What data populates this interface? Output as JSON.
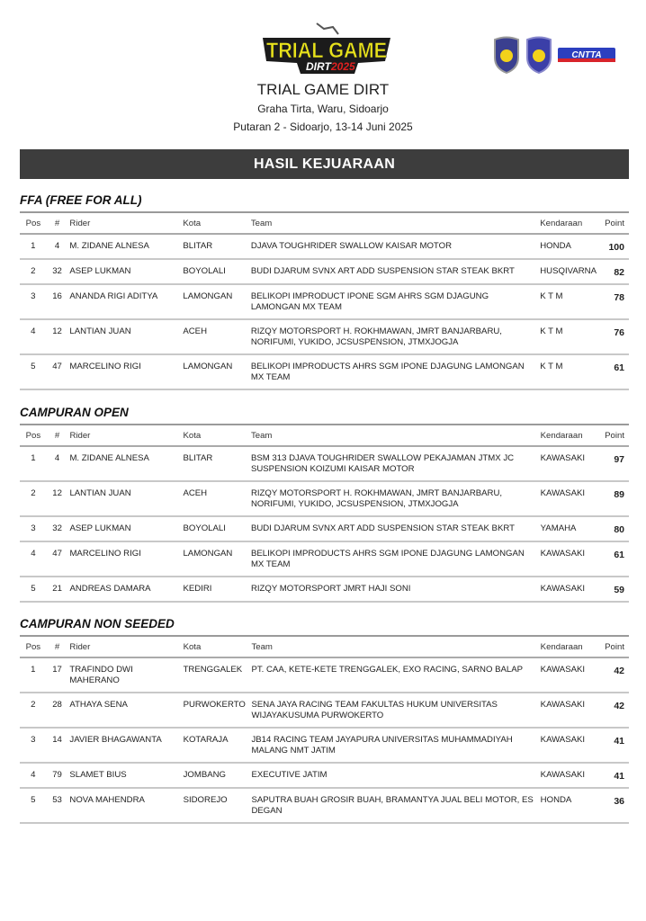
{
  "header": {
    "logo_text": "TRIAL GAME DIRT 2025",
    "title": "TRIAL GAME DIRT",
    "venue": "Graha Tirta, Waru, Sidoarjo",
    "round": "Putaran 2 - Sidoarjo, 13-14 Juni 2025",
    "banner": "HASIL KEJUARAAN",
    "partner_logos": [
      "shield-emblem-1",
      "shield-emblem-2",
      "brand-logo"
    ]
  },
  "columns": [
    "Pos",
    "#",
    "Rider",
    "Kota",
    "Team",
    "Kendaraan",
    "Point"
  ],
  "sections": [
    {
      "title": "FFA (FREE FOR ALL)",
      "rows": [
        [
          "1",
          "4",
          "M. ZIDANE ALNESA",
          "BLITAR",
          "DJAVA TOUGHRIDER SWALLOW KAISAR MOTOR",
          "HONDA",
          "100"
        ],
        [
          "2",
          "32",
          "ASEP LUKMAN",
          "BOYOLALI",
          "BUDI DJARUM SVNX ART ADD SUSPENSION STAR STEAK BKRT",
          "HUSQIVARNA",
          "82"
        ],
        [
          "3",
          "16",
          "ANANDA RIGI ADITYA",
          "LAMONGAN",
          "BELIKOPI IMPRODUCT IPONE SGM AHRS SGM DJAGUNG LAMONGAN MX TEAM",
          "K T M",
          "78"
        ],
        [
          "4",
          "12",
          "LANTIAN JUAN",
          "ACEH",
          "RIZQY MOTORSPORT H. ROKHMAWAN, JMRT BANJARBARU, NORIFUMI, YUKIDO,  JCSUSPENSION, JTMXJOGJA",
          "K T M",
          "76"
        ],
        [
          "5",
          "47",
          "MARCELINO RIGI",
          "LAMONGAN",
          "BELIKOPI IMPRODUCTS AHRS SGM IPONE DJAGUNG LAMONGAN MX TEAM",
          "K T M",
          "61"
        ]
      ]
    },
    {
      "title": "CAMPURAN OPEN",
      "rows": [
        [
          "1",
          "4",
          "M. ZIDANE ALNESA",
          "BLITAR",
          "BSM 313 DJAVA TOUGHRIDER SWALLOW PEKAJAMAN JTMX JC SUSPENSION KOIZUMI KAISAR MOTOR",
          "KAWASAKI",
          "97"
        ],
        [
          "2",
          "12",
          "LANTIAN JUAN",
          "ACEH",
          "RIZQY MOTORSPORT H. ROKHMAWAN, JMRT BANJARBARU, NORIFUMI, YUKIDO,  JCSUSPENSION, JTMXJOGJA",
          "KAWASAKI",
          "89"
        ],
        [
          "3",
          "32",
          "ASEP LUKMAN",
          "BOYOLALI",
          "BUDI DJARUM SVNX ART ADD SUSPENSION STAR STEAK BKRT",
          "YAMAHA",
          "80"
        ],
        [
          "4",
          "47",
          "MARCELINO RIGI",
          "LAMONGAN",
          "BELIKOPI IMPRODUCTS AHRS SGM IPONE DJAGUNG LAMONGAN MX TEAM",
          "KAWASAKI",
          "61"
        ],
        [
          "5",
          "21",
          "ANDREAS DAMARA",
          "KEDIRI",
          "RIZQY MOTORSPORT JMRT HAJI SONI",
          "KAWASAKI",
          "59"
        ]
      ]
    },
    {
      "title": "CAMPURAN NON SEEDED",
      "rows": [
        [
          "1",
          "17",
          "TRAFINDO DWI MAHERANO",
          "TRENGGALEK",
          "PT. CAA, KETE-KETE TRENGGALEK, EXO RACING, SARNO BALAP",
          "KAWASAKI",
          "42"
        ],
        [
          "2",
          "28",
          "ATHAYA SENA",
          "PURWOKERTO",
          "SENA JAYA RACING TEAM FAKULTAS HUKUM UNIVERSITAS WIJAYAKUSUMA PURWOKERTO",
          "KAWASAKI",
          "42"
        ],
        [
          "3",
          "14",
          "JAVIER BHAGAWANTA",
          "KOTARAJA",
          "JB14 RACING TEAM JAYAPURA UNIVERSITAS MUHAMMADIYAH MALANG NMT JATIM",
          "KAWASAKI",
          "41"
        ],
        [
          "4",
          "79",
          "SLAMET BIUS",
          "JOMBANG",
          "EXECUTIVE JATIM",
          "KAWASAKI",
          "41"
        ],
        [
          "5",
          "53",
          "NOVA MAHENDRA",
          "SIDOREJO",
          "SAPUTRA BUAH GROSIR BUAH, BRAMANTYA JUAL BELI MOTOR, ES DEGAN",
          "HONDA",
          "36"
        ]
      ]
    }
  ]
}
